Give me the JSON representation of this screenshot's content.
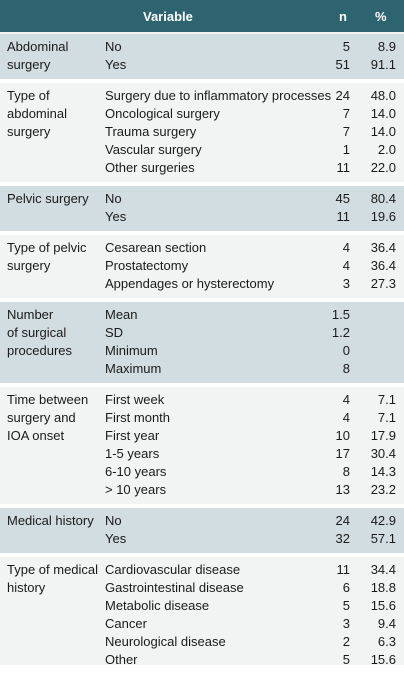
{
  "header": {
    "variable": "Variable",
    "n": "n",
    "pct": "%"
  },
  "groups": [
    {
      "label": "Abdominal\nsurgery",
      "rows": [
        {
          "category": "No",
          "n": "5",
          "pct": "8.9"
        },
        {
          "category": "Yes",
          "n": "51",
          "pct": "91.1"
        }
      ]
    },
    {
      "label": "Type of\nabdominal\nsurgery",
      "rows": [
        {
          "category": "Surgery due to inflammatory processes",
          "n": "24",
          "pct": "48.0"
        },
        {
          "category": "Oncological surgery",
          "n": "7",
          "pct": "14.0"
        },
        {
          "category": "Trauma surgery",
          "n": "7",
          "pct": "14.0"
        },
        {
          "category": "Vascular surgery",
          "n": "1",
          "pct": "2.0"
        },
        {
          "category": "Other surgeries",
          "n": "11",
          "pct": "22.0"
        }
      ]
    },
    {
      "label": "Pelvic surgery",
      "rows": [
        {
          "category": "No",
          "n": "45",
          "pct": "80.4"
        },
        {
          "category": "Yes",
          "n": "11",
          "pct": "19.6"
        }
      ]
    },
    {
      "label": "Type of pelvic\nsurgery",
      "rows": [
        {
          "category": "Cesarean section",
          "n": "4",
          "pct": "36.4"
        },
        {
          "category": "Prostatectomy",
          "n": "4",
          "pct": "36.4"
        },
        {
          "category": "Appendages or hysterectomy",
          "n": "3",
          "pct": "27.3"
        }
      ]
    },
    {
      "label": "Number\nof surgical\nprocedures",
      "rows": [
        {
          "category": "Mean",
          "n": "1.5",
          "pct": ""
        },
        {
          "category": "SD",
          "n": "1.2",
          "pct": ""
        },
        {
          "category": "Minimum",
          "n": "0",
          "pct": ""
        },
        {
          "category": "Maximum",
          "n": "8",
          "pct": ""
        }
      ]
    },
    {
      "label": "Time between\nsurgery and\nIOA onset",
      "rows": [
        {
          "category": "First week",
          "n": "4",
          "pct": "7.1"
        },
        {
          "category": "First month",
          "n": "4",
          "pct": "7.1"
        },
        {
          "category": "First year",
          "n": "10",
          "pct": "17.9"
        },
        {
          "category": "1-5 years",
          "n": "17",
          "pct": "30.4"
        },
        {
          "category": "6-10 years",
          "n": "8",
          "pct": "14.3"
        },
        {
          "category": "> 10 years",
          "n": "13",
          "pct": "23.2"
        }
      ]
    },
    {
      "label": "Medical history",
      "rows": [
        {
          "category": "No",
          "n": "24",
          "pct": "42.9"
        },
        {
          "category": "Yes",
          "n": "32",
          "pct": "57.1"
        }
      ]
    },
    {
      "label": "Type of medical\nhistory",
      "rows": [
        {
          "category": "Cardiovascular disease",
          "n": "11",
          "pct": "34.4"
        },
        {
          "category": "Gastrointestinal disease",
          "n": "6",
          "pct": "18.8"
        },
        {
          "category": "Metabolic disease",
          "n": "5",
          "pct": "15.6"
        },
        {
          "category": "Cancer",
          "n": "3",
          "pct": "9.4"
        },
        {
          "category": "Neurological disease",
          "n": "2",
          "pct": "6.3"
        },
        {
          "category": "Other",
          "n": "5",
          "pct": "15.6"
        }
      ]
    }
  ]
}
